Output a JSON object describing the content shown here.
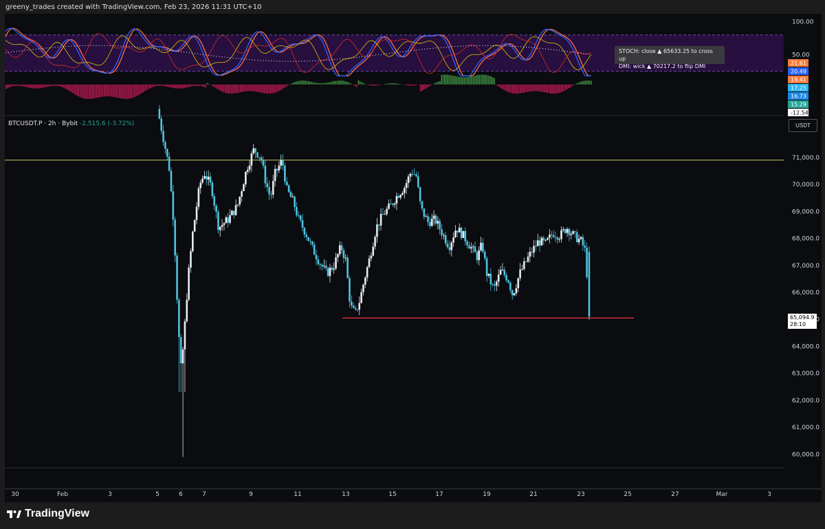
{
  "header": {
    "created_by": "greeny_trades created with TradingView.com, Feb 23, 2026 11:31 UTC+10"
  },
  "symbol": {
    "name": "BTCUSDT.P · 2h · Bybit",
    "change": "-2,515.6 (-3.72%)"
  },
  "currency_button": "USDT",
  "tooltip": {
    "line1": "STOCH: close ▲ 65633.25 to cross up",
    "line2": "DMI: wick ▲ 70217.2 to flip DMI"
  },
  "current_price": {
    "value": "65,094.9",
    "countdown": "28:10"
  },
  "brand": {
    "name": "TradingView"
  },
  "indicator_axis": {
    "ticks": [
      "100.00",
      "50.00"
    ],
    "badges": [
      {
        "text": "21.61",
        "color": "#f57c3a"
      },
      {
        "text": "20.49",
        "color": "#2962ff"
      },
      {
        "text": "19.41",
        "color": "#f57c3a"
      },
      {
        "text": "17.25",
        "color": "#29b6f6"
      },
      {
        "text": "16.73",
        "color": "#1e88e5"
      },
      {
        "text": "15.29",
        "color": "#26a69a"
      },
      {
        "text": "-12.54",
        "color": "#ffffff"
      }
    ]
  },
  "chart_data": {
    "type": "candlestick",
    "title": "BTCUSDT.P · 2h · Bybit",
    "ylim": [
      59500,
      72500
    ],
    "y_ticks": [
      "71,000.0",
      "70,000.0",
      "69,000.0",
      "68,000.0",
      "67,000.0",
      "66,000.0",
      "65,000.0",
      "64,000.0",
      "63,000.0",
      "62,000.0",
      "61,000.0",
      "60,000.0"
    ],
    "x_ticks": [
      "30",
      "Feb",
      "3",
      "5",
      "6",
      "7",
      "9",
      "11",
      "13",
      "15",
      "17",
      "19",
      "21",
      "23",
      "25",
      "27",
      "Mar",
      "3"
    ],
    "horizontal_lines": [
      {
        "value": 70900,
        "color": "#c8c860"
      },
      {
        "value": 65050,
        "color": "#f23645"
      }
    ],
    "path": [
      [
        5.0,
        72800
      ],
      [
        5.3,
        71500
      ],
      [
        5.5,
        70600
      ],
      [
        5.7,
        68500
      ],
      [
        5.8,
        66500
      ],
      [
        5.9,
        64500
      ],
      [
        6.0,
        63200
      ],
      [
        6.1,
        64000
      ],
      [
        6.3,
        66500
      ],
      [
        6.5,
        68200
      ],
      [
        6.8,
        70000
      ],
      [
        7.0,
        70400
      ],
      [
        7.3,
        69900
      ],
      [
        7.6,
        68400
      ],
      [
        8.0,
        68700
      ],
      [
        8.4,
        69200
      ],
      [
        8.8,
        70600
      ],
      [
        9.1,
        71300
      ],
      [
        9.4,
        71000
      ],
      [
        9.6,
        70100
      ],
      [
        9.8,
        69500
      ],
      [
        10.0,
        70400
      ],
      [
        10.3,
        70900
      ],
      [
        10.5,
        69800
      ],
      [
        10.8,
        69300
      ],
      [
        11.0,
        68700
      ],
      [
        11.3,
        68200
      ],
      [
        11.6,
        67600
      ],
      [
        11.9,
        67100
      ],
      [
        12.2,
        66700
      ],
      [
        12.5,
        67000
      ],
      [
        12.8,
        67700
      ],
      [
        13.0,
        67200
      ],
      [
        13.2,
        65500
      ],
      [
        13.4,
        65200
      ],
      [
        13.6,
        65700
      ],
      [
        13.8,
        66500
      ],
      [
        14.0,
        67200
      ],
      [
        14.3,
        68400
      ],
      [
        14.6,
        68900
      ],
      [
        14.9,
        69200
      ],
      [
        15.2,
        69600
      ],
      [
        15.5,
        69900
      ],
      [
        15.8,
        70500
      ],
      [
        16.0,
        70300
      ],
      [
        16.2,
        69100
      ],
      [
        16.5,
        68600
      ],
      [
        16.8,
        68700
      ],
      [
        17.1,
        68200
      ],
      [
        17.4,
        67700
      ],
      [
        17.7,
        68400
      ],
      [
        18.0,
        68100
      ],
      [
        18.3,
        67700
      ],
      [
        18.6,
        67300
      ],
      [
        18.8,
        67800
      ],
      [
        19.0,
        66700
      ],
      [
        19.3,
        66100
      ],
      [
        19.6,
        66800
      ],
      [
        19.9,
        66500
      ],
      [
        20.1,
        65900
      ],
      [
        20.4,
        66700
      ],
      [
        20.7,
        67200
      ],
      [
        20.9,
        67500
      ],
      [
        21.2,
        67900
      ],
      [
        21.5,
        67800
      ],
      [
        21.8,
        68200
      ],
      [
        22.1,
        68100
      ],
      [
        22.4,
        68400
      ],
      [
        22.7,
        68100
      ],
      [
        23.0,
        67900
      ],
      [
        23.2,
        67500
      ],
      [
        23.35,
        65100
      ]
    ],
    "indicator_pane": {
      "ylim": [
        -40,
        110
      ],
      "band": [
        25,
        80
      ]
    }
  }
}
